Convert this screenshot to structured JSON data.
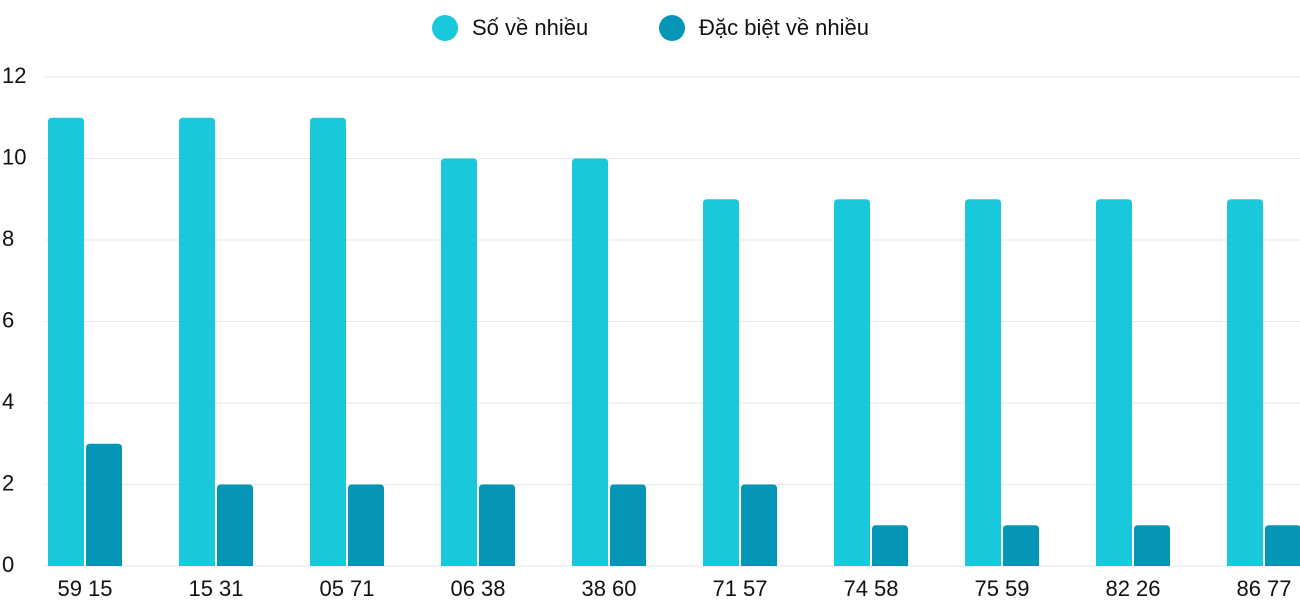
{
  "chart_data": {
    "type": "bar",
    "categories": [
      "59 15",
      "15 31",
      "05 71",
      "06 38",
      "38 60",
      "71 57",
      "74 58",
      "75 59",
      "82 26",
      "86 77"
    ],
    "series": [
      {
        "name": "Số về nhiều",
        "color": "#1ac8db",
        "values": [
          11,
          11,
          11,
          10,
          10,
          9,
          9,
          9,
          9,
          9
        ]
      },
      {
        "name": "Đặc biệt về nhiều",
        "color": "#0595b7",
        "values": [
          3,
          2,
          2,
          2,
          2,
          2,
          1,
          1,
          1,
          1
        ]
      }
    ],
    "ylim": [
      0,
      12
    ],
    "yticks": [
      0,
      2,
      4,
      6,
      8,
      10,
      12
    ],
    "grid": true,
    "legend": "top"
  }
}
